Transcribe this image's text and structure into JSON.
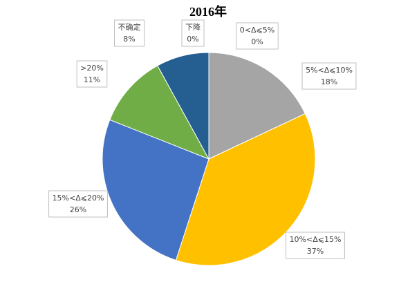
{
  "chart_data": {
    "type": "pie",
    "title": "2016年",
    "categories": [
      "0<Δ⩽5%",
      "5%<Δ⩽10%",
      "10%<Δ⩽15%",
      "15%<Δ⩽20%",
      ">20%",
      "不确定",
      "下降"
    ],
    "values": [
      0,
      18,
      37,
      26,
      11,
      8,
      0
    ],
    "value_labels": [
      "0%",
      "18%",
      "37%",
      "26%",
      "11%",
      "8%",
      "0%"
    ],
    "colors": [
      null,
      "#a5a5a5",
      "#ffc000",
      "#4472c4",
      "#70ad47",
      "#255e91",
      null
    ]
  }
}
